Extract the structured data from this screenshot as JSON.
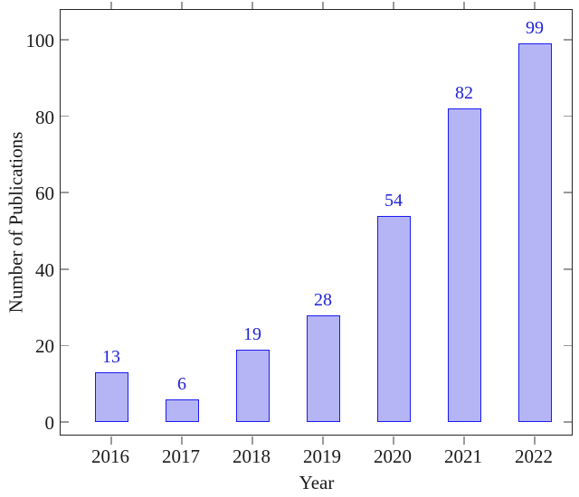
{
  "chart_data": {
    "type": "bar",
    "categories": [
      "2016",
      "2017",
      "2018",
      "2019",
      "2020",
      "2021",
      "2022"
    ],
    "values": [
      13,
      6,
      19,
      28,
      54,
      82,
      99
    ],
    "xlabel": "Year",
    "ylabel": "Number of Publications",
    "yticks": [
      0,
      20,
      40,
      60,
      80,
      100
    ],
    "ylim": [
      0,
      100
    ],
    "grid": false,
    "legend": null,
    "value_labels_shown": true,
    "colors": {
      "bar_fill": "#b5b5f6",
      "bar_border": "#1a1af0",
      "value_label": "#1f1fd8",
      "axis_frame": "#262626",
      "tick_mark": "#9a9a9a",
      "tick_text": "#1a1a1a"
    }
  }
}
